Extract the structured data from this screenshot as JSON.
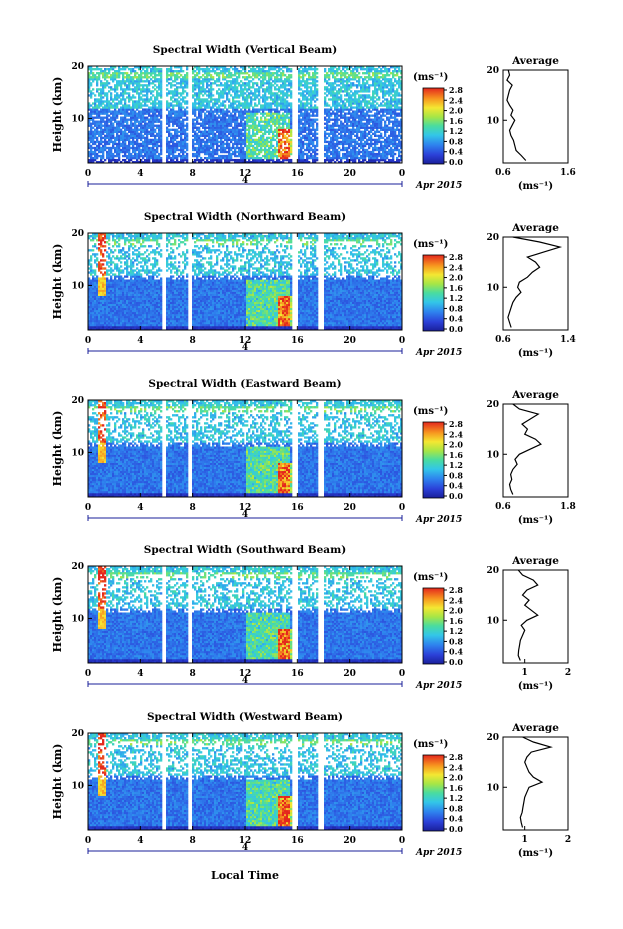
{
  "figure": {
    "xlabel": "Local Time",
    "date_label": "Apr 2015",
    "day_label": "4",
    "avg_title": "Average",
    "unit": "(ms⁻¹)",
    "ylabel": "Height (km)"
  },
  "chart_data": [
    {
      "type": "heatmap",
      "title": "Spectral Width (Vertical Beam)",
      "xlabel": "",
      "ylabel": "Height (km)",
      "x_ticks": [
        "0",
        "4",
        "8",
        "12",
        "16",
        "20",
        "0"
      ],
      "y_ticks": [
        "10",
        "20"
      ],
      "xlim": [
        0,
        24
      ],
      "ylim": [
        1.5,
        20
      ],
      "colorbar": {
        "label": "(ms⁻¹)",
        "ticks": [
          "0.0",
          "0.4",
          "0.8",
          "1.2",
          "1.6",
          "2.0",
          "2.4",
          "2.8"
        ],
        "range": [
          0,
          2.8
        ]
      },
      "data_gaps_hours": [
        [
          5.6,
          6.0
        ],
        [
          7.6,
          8.0
        ],
        [
          15.6,
          16.0
        ],
        [
          17.6,
          18.0
        ]
      ],
      "average_profile": {
        "title": "Average",
        "xlabel": "(ms⁻¹)",
        "xlim": [
          0.6,
          1.6
        ],
        "x_ticks": [
          "0.6",
          "1.6"
        ],
        "y_ticks": [
          "10",
          "20"
        ],
        "height_km": [
          2,
          3,
          4,
          5,
          6,
          7,
          8,
          9,
          10,
          11,
          12,
          13,
          14,
          15,
          16,
          17,
          18,
          19,
          20
        ],
        "values": [
          0.95,
          0.88,
          0.8,
          0.78,
          0.76,
          0.72,
          0.7,
          0.74,
          0.78,
          0.72,
          0.75,
          0.7,
          0.66,
          0.68,
          0.7,
          0.74,
          0.66,
          0.7,
          0.68
        ]
      }
    },
    {
      "type": "heatmap",
      "title": "Spectral Width (Northward Beam)",
      "xlabel": "",
      "ylabel": "Height (km)",
      "x_ticks": [
        "0",
        "4",
        "8",
        "12",
        "16",
        "20",
        "0"
      ],
      "y_ticks": [
        "10",
        "20"
      ],
      "xlim": [
        0,
        24
      ],
      "ylim": [
        1.5,
        20
      ],
      "colorbar": {
        "label": "(ms⁻¹)",
        "ticks": [
          "0.0",
          "0.4",
          "0.8",
          "1.2",
          "1.6",
          "2.0",
          "2.4",
          "2.8"
        ],
        "range": [
          0,
          2.8
        ]
      },
      "data_gaps_hours": [
        [
          5.6,
          6.0
        ],
        [
          7.6,
          8.0
        ],
        [
          15.6,
          16.0
        ],
        [
          17.6,
          18.0
        ]
      ],
      "average_profile": {
        "title": "Average",
        "xlabel": "(ms⁻¹)",
        "xlim": [
          0.6,
          1.4
        ],
        "x_ticks": [
          "0.6",
          "1.4"
        ],
        "y_ticks": [
          "10",
          "20"
        ],
        "height_km": [
          2,
          3,
          4,
          5,
          6,
          7,
          8,
          9,
          10,
          11,
          12,
          13,
          14,
          15,
          16,
          17,
          18,
          19,
          20
        ],
        "values": [
          0.7,
          0.68,
          0.66,
          0.68,
          0.7,
          0.72,
          0.76,
          0.82,
          0.78,
          0.8,
          0.9,
          0.96,
          1.05,
          1.0,
          0.9,
          1.1,
          1.3,
          1.05,
          0.72
        ]
      }
    },
    {
      "type": "heatmap",
      "title": "Spectral Width (Eastward Beam)",
      "xlabel": "",
      "ylabel": "Height (km)",
      "x_ticks": [
        "0",
        "4",
        "8",
        "12",
        "16",
        "20",
        "0"
      ],
      "y_ticks": [
        "10",
        "20"
      ],
      "xlim": [
        0,
        24
      ],
      "ylim": [
        1.5,
        20
      ],
      "colorbar": {
        "label": "(ms⁻¹)",
        "ticks": [
          "0.0",
          "0.4",
          "0.8",
          "1.2",
          "1.6",
          "2.0",
          "2.4",
          "2.8"
        ],
        "range": [
          0,
          2.8
        ]
      },
      "data_gaps_hours": [
        [
          5.6,
          6.0
        ],
        [
          7.6,
          8.0
        ],
        [
          15.6,
          16.0
        ],
        [
          17.6,
          18.0
        ]
      ],
      "average_profile": {
        "title": "Average",
        "xlabel": "(ms⁻¹)",
        "xlim": [
          0.6,
          1.8
        ],
        "x_ticks": [
          "0.6",
          "1.8"
        ],
        "y_ticks": [
          "10",
          "20"
        ],
        "height_km": [
          2,
          3,
          4,
          5,
          6,
          7,
          8,
          9,
          10,
          11,
          12,
          13,
          14,
          15,
          16,
          17,
          18,
          19,
          20
        ],
        "values": [
          0.78,
          0.74,
          0.72,
          0.76,
          0.74,
          0.78,
          0.86,
          0.82,
          0.9,
          1.1,
          1.3,
          1.2,
          1.0,
          1.05,
          0.95,
          1.1,
          1.25,
          0.9,
          0.78
        ]
      }
    },
    {
      "type": "heatmap",
      "title": "Spectral Width (Southward Beam)",
      "xlabel": "",
      "ylabel": "Height (km)",
      "x_ticks": [
        "0",
        "4",
        "8",
        "12",
        "16",
        "20",
        "0"
      ],
      "y_ticks": [
        "10",
        "20"
      ],
      "xlim": [
        0,
        24
      ],
      "ylim": [
        1.5,
        20
      ],
      "colorbar": {
        "label": "(ms⁻¹)",
        "ticks": [
          "0.0",
          "0.4",
          "0.8",
          "1.2",
          "1.6",
          "2.0",
          "2.4",
          "2.8"
        ],
        "range": [
          0,
          2.8
        ]
      },
      "data_gaps_hours": [
        [
          5.6,
          6.0
        ],
        [
          7.6,
          8.0
        ],
        [
          15.6,
          16.0
        ],
        [
          17.6,
          18.0
        ]
      ],
      "average_profile": {
        "title": "Average",
        "xlabel": "(ms⁻¹)",
        "xlim": [
          0.5,
          2.0
        ],
        "x_ticks": [
          "1",
          "2"
        ],
        "y_ticks": [
          "10",
          "20"
        ],
        "height_km": [
          2,
          3,
          4,
          5,
          6,
          7,
          8,
          9,
          10,
          11,
          12,
          13,
          14,
          15,
          16,
          17,
          18,
          19,
          20
        ],
        "values": [
          0.9,
          0.85,
          0.86,
          0.88,
          0.9,
          0.95,
          1.0,
          0.92,
          1.05,
          1.3,
          1.15,
          1.0,
          1.1,
          0.95,
          1.05,
          1.3,
          1.2,
          0.95,
          0.85
        ]
      }
    },
    {
      "type": "heatmap",
      "title": "Spectral Width (Westward Beam)",
      "xlabel": "Local Time",
      "ylabel": "Height (km)",
      "x_ticks": [
        "0",
        "4",
        "8",
        "12",
        "16",
        "20",
        "0"
      ],
      "y_ticks": [
        "10",
        "20"
      ],
      "xlim": [
        0,
        24
      ],
      "ylim": [
        1.5,
        20
      ],
      "colorbar": {
        "label": "(ms⁻¹)",
        "ticks": [
          "0.0",
          "0.4",
          "0.8",
          "1.2",
          "1.6",
          "2.0",
          "2.4",
          "2.8"
        ],
        "range": [
          0,
          2.8
        ]
      },
      "data_gaps_hours": [
        [
          5.6,
          6.0
        ],
        [
          7.6,
          8.0
        ],
        [
          15.6,
          16.0
        ],
        [
          17.6,
          18.0
        ]
      ],
      "average_profile": {
        "title": "Average",
        "xlabel": "(ms⁻¹)",
        "xlim": [
          0.5,
          2.0
        ],
        "x_ticks": [
          "1",
          "2"
        ],
        "y_ticks": [
          "10",
          "20"
        ],
        "height_km": [
          2,
          3,
          4,
          5,
          6,
          7,
          8,
          9,
          10,
          11,
          12,
          13,
          14,
          15,
          16,
          17,
          18,
          19,
          20
        ],
        "values": [
          0.95,
          0.92,
          0.9,
          0.94,
          0.96,
          0.98,
          1.0,
          1.05,
          1.1,
          1.4,
          1.2,
          1.1,
          1.05,
          1.0,
          1.05,
          1.15,
          1.6,
          1.2,
          0.95
        ]
      }
    }
  ]
}
